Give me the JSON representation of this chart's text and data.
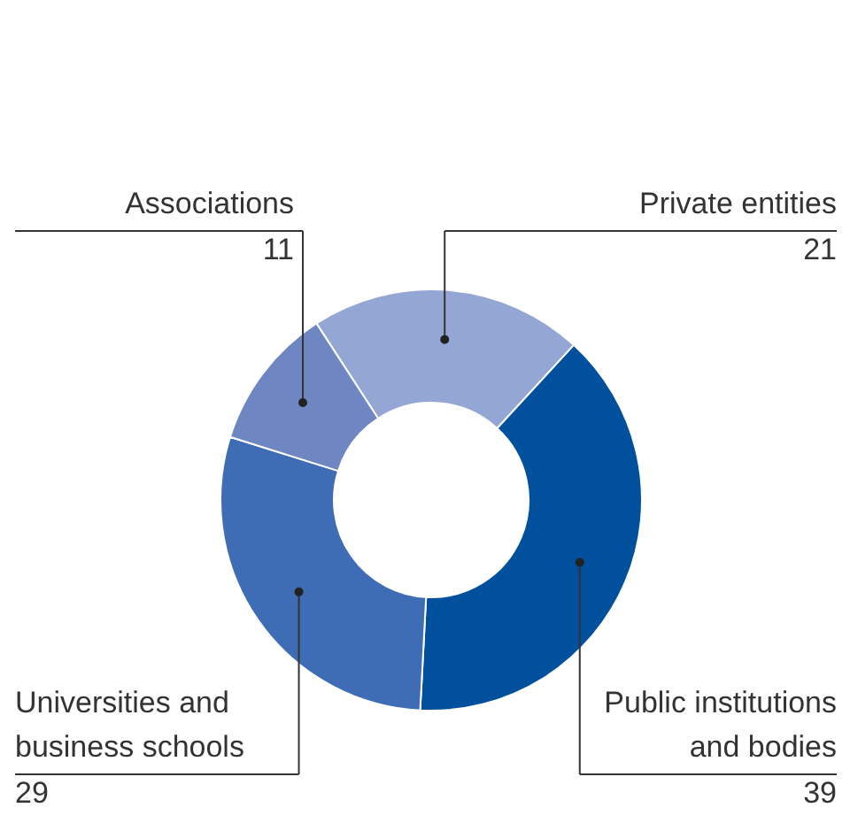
{
  "chart_data": {
    "type": "donut",
    "categories": [
      "Private entities",
      "Public institutions and bodies",
      "Universities and business schools",
      "Associations"
    ],
    "values": [
      21,
      39,
      29,
      11
    ],
    "colors": [
      "#94a6d4",
      "#00509e",
      "#3e6db5",
      "#6e86c2"
    ],
    "data_labels": true
  }
}
